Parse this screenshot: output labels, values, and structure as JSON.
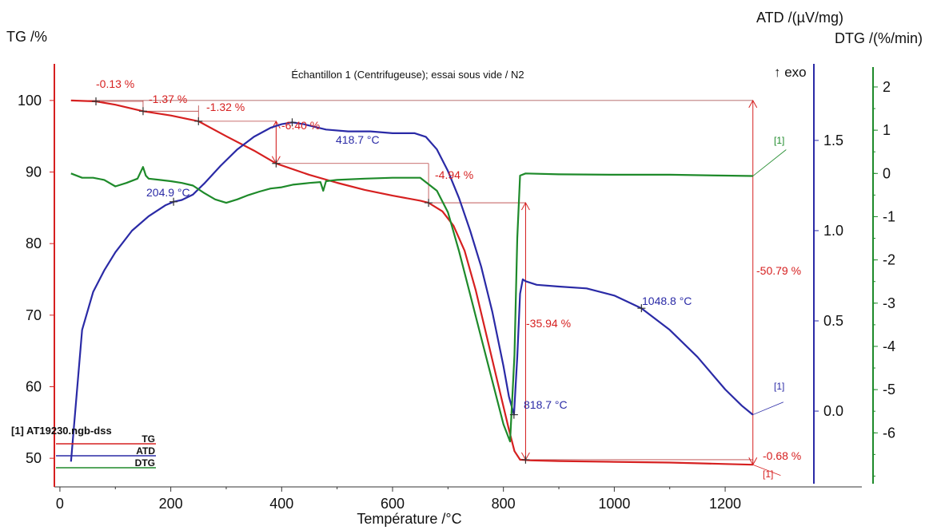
{
  "chart_data": {
    "type": "line",
    "title": "Échantillon 1 (Centrifugeuse); essai sous vide / N2",
    "xlabel": "Température /°C",
    "ylabel_left": "TG /%",
    "ylabel_right1": "ATD /(µV/mg)",
    "ylabel_right2": "DTG /(%/min)",
    "exo_label": "↑ exo",
    "xlim": [
      -10,
      1360
    ],
    "ylim_tg": [
      46,
      104
    ],
    "ylim_atd": [
      -0.42,
      1.88
    ],
    "ylim_dtg": [
      -7.25,
      2.35
    ],
    "x_ticks": [
      "0",
      "200",
      "400",
      "600",
      "800",
      "1000",
      "1200"
    ],
    "tg_ticks": [
      "50",
      "60",
      "70",
      "80",
      "90",
      "100"
    ],
    "atd_ticks": [
      "0.0",
      "0.5",
      "1.0",
      "1.5"
    ],
    "dtg_ticks": [
      "-6",
      "-5",
      "-4",
      "-3",
      "-2",
      "-1",
      "0",
      "1",
      "2"
    ],
    "colors": {
      "tg": "#d62020",
      "atd": "#2a2aa6",
      "dtg": "#1e8a2a",
      "tg_axis": "#d62020",
      "atd_axis": "#2a2aa6",
      "dtg_axis": "#1e8a2a"
    },
    "legend": {
      "file": "[1] AT19230.ngb-dss",
      "entries": [
        "TG",
        "ATD",
        "DTG"
      ],
      "position": "bottom-left"
    },
    "series": [
      {
        "name": "TG",
        "axis": "tg",
        "x": [
          20,
          65,
          100,
          150,
          200,
          250,
          300,
          350,
          390,
          450,
          500,
          550,
          600,
          650,
          665,
          690,
          710,
          730,
          750,
          770,
          790,
          810,
          820,
          830,
          850,
          900,
          1000,
          1100,
          1200,
          1250
        ],
        "y": [
          100.0,
          99.87,
          99.4,
          98.5,
          97.9,
          97.1,
          95.0,
          93.0,
          91.2,
          89.6,
          88.5,
          87.5,
          86.7,
          86.0,
          85.7,
          84.5,
          82.5,
          79.0,
          73.5,
          67.0,
          60.5,
          54.0,
          51.0,
          49.8,
          49.7,
          49.6,
          49.5,
          49.4,
          49.2,
          49.1
        ]
      },
      {
        "name": "ATD",
        "axis": "atd",
        "x": [
          20,
          40,
          60,
          80,
          100,
          130,
          160,
          190,
          205,
          220,
          240,
          260,
          290,
          320,
          350,
          380,
          400,
          419,
          440,
          480,
          520,
          560,
          600,
          640,
          660,
          680,
          700,
          720,
          740,
          760,
          780,
          800,
          810,
          819,
          825,
          830,
          835,
          840,
          860,
          900,
          950,
          1000,
          1049,
          1100,
          1150,
          1200,
          1230,
          1250
        ],
        "y": [
          -0.28,
          0.45,
          0.66,
          0.78,
          0.88,
          1.0,
          1.08,
          1.14,
          1.16,
          1.17,
          1.2,
          1.26,
          1.36,
          1.45,
          1.52,
          1.57,
          1.59,
          1.6,
          1.59,
          1.56,
          1.55,
          1.55,
          1.54,
          1.54,
          1.52,
          1.45,
          1.33,
          1.18,
          1.0,
          0.8,
          0.55,
          0.25,
          0.08,
          -0.02,
          0.3,
          0.65,
          0.73,
          0.72,
          0.7,
          0.69,
          0.68,
          0.64,
          0.57,
          0.45,
          0.3,
          0.12,
          0.03,
          -0.02
        ]
      },
      {
        "name": "DTG",
        "axis": "dtg",
        "x": [
          20,
          40,
          60,
          80,
          100,
          120,
          140,
          150,
          155,
          160,
          180,
          200,
          220,
          240,
          260,
          280,
          300,
          320,
          340,
          360,
          380,
          400,
          420,
          450,
          470,
          475,
          480,
          500,
          550,
          600,
          650,
          680,
          700,
          720,
          740,
          760,
          780,
          800,
          812,
          820,
          825,
          830,
          840,
          900,
          1000,
          1100,
          1200,
          1250
        ],
        "y": [
          0.0,
          -0.1,
          -0.1,
          -0.15,
          -0.3,
          -0.22,
          -0.12,
          0.15,
          -0.05,
          -0.12,
          -0.15,
          -0.18,
          -0.22,
          -0.28,
          -0.45,
          -0.6,
          -0.68,
          -0.6,
          -0.5,
          -0.42,
          -0.35,
          -0.32,
          -0.26,
          -0.22,
          -0.2,
          -0.4,
          -0.18,
          -0.15,
          -0.12,
          -0.1,
          -0.1,
          -0.4,
          -0.9,
          -1.8,
          -2.8,
          -3.8,
          -4.8,
          -5.8,
          -6.2,
          -4.2,
          -1.5,
          -0.05,
          0.0,
          -0.02,
          -0.03,
          -0.03,
          -0.05,
          -0.06
        ]
      }
    ],
    "annotations": {
      "mass_steps": [
        "-0.13 %",
        "-1.37 %",
        "-1.32 %",
        "-6.40 %",
        "-4.94 %",
        "-35.94 %",
        "-50.79 %",
        "-0.68 %"
      ],
      "peaks": [
        "204.9 °C",
        "418.7 °C",
        "818.7 °C",
        "1048.8 °C"
      ],
      "markers": [
        "[1]",
        "[1]",
        "[1]"
      ]
    }
  }
}
